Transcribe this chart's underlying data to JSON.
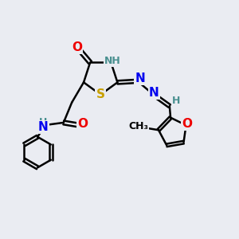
{
  "background_color": "#eaecf2",
  "atom_colors": {
    "C": "#000000",
    "N": "#0000ee",
    "O": "#ee0000",
    "S": "#c8a000",
    "H": "#4a9090"
  },
  "bond_color": "#000000",
  "bond_width": 1.8,
  "font_size_atom": 11,
  "font_size_h": 9,
  "font_size_small": 9
}
